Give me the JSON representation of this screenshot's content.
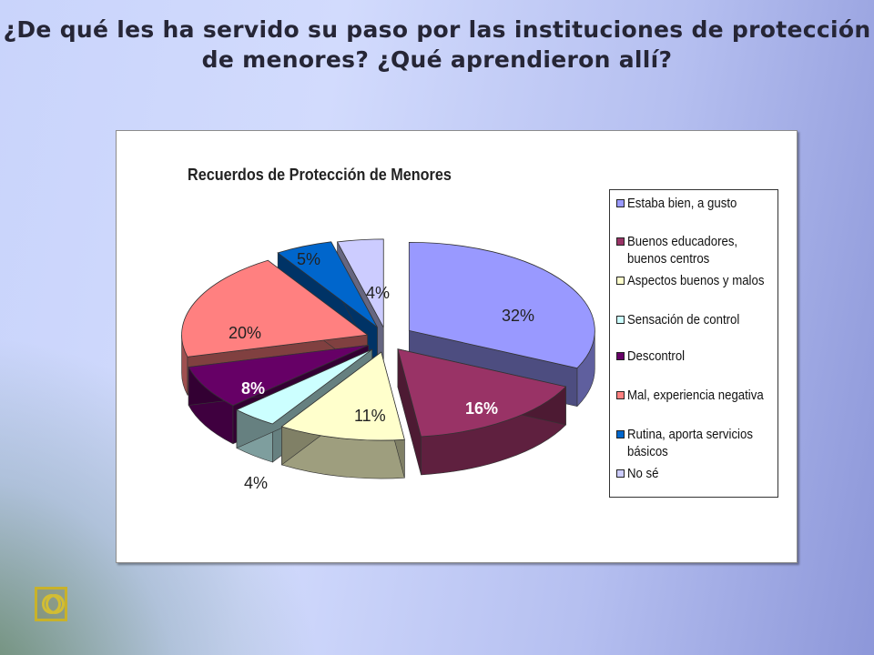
{
  "slide": {
    "title_line1": "¿De qué les ha servido su paso por las instituciones de protección",
    "title_line2": "de menores? ¿Qué aprendieron allí?"
  },
  "chart_data": {
    "type": "pie",
    "style": "3d-exploded",
    "title": "Recuerdos de Protección de Menores",
    "legend_position": "right",
    "slices": [
      {
        "label": "Estaba bien, a gusto",
        "value": 32,
        "value_label": "32%",
        "color": "#9999ff"
      },
      {
        "label": "Buenos educadores, buenos centros",
        "value": 16,
        "value_label": "16%",
        "color": "#993366"
      },
      {
        "label": "Aspectos buenos y malos",
        "value": 11,
        "value_label": "11%",
        "color": "#ffffcc"
      },
      {
        "label": "Sensación de control",
        "value": 4,
        "value_label": "4%",
        "color": "#ccffff"
      },
      {
        "label": "Descontrol",
        "value": 8,
        "value_label": "8%",
        "color": "#660066"
      },
      {
        "label": "Mal, experiencia negativa",
        "value": 20,
        "value_label": "20%",
        "color": "#ff8080"
      },
      {
        "label": "Rutina, aporta servicios básicos",
        "value": 5,
        "value_label": "5%",
        "color": "#0066cc"
      },
      {
        "label": "No sé",
        "value": 4,
        "value_label": "4%",
        "color": "#ccccff"
      }
    ]
  },
  "icons": {
    "slide_icon": "slide-number-icon"
  }
}
